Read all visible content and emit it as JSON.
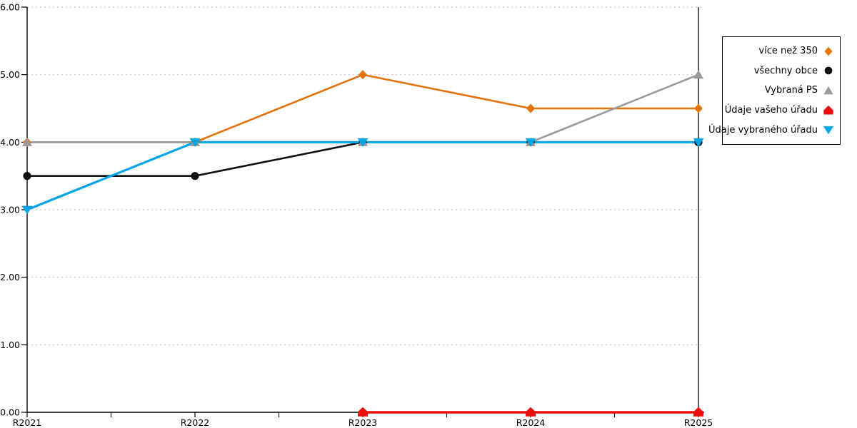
{
  "chart_data": {
    "type": "line",
    "title": "",
    "xlabel": "",
    "ylabel": "",
    "categories": [
      "R2021",
      "R2022",
      "R2023",
      "R2024",
      "R2025"
    ],
    "series": [
      {
        "name": "více než 350",
        "color": "#E2730D",
        "marker": "diamond",
        "values": [
          4,
          4,
          5,
          4.5,
          4.5
        ]
      },
      {
        "name": "všechny obce",
        "color": "#111111",
        "marker": "circle",
        "values": [
          3.5,
          3.5,
          4,
          4,
          4
        ]
      },
      {
        "name": "Vybraná PS",
        "color": "#9A9A9A",
        "marker": "triangle-up",
        "values": [
          4,
          4,
          4,
          4,
          5
        ]
      },
      {
        "name": "Údaje vašeho úřadu",
        "color": "#EE0D0D",
        "marker": "pentagon",
        "values": [
          null,
          null,
          0,
          0,
          0
        ]
      },
      {
        "name": "Údaje vybraného úřadu",
        "color": "#00A5E5",
        "marker": "triangle-down",
        "values": [
          3,
          4,
          4,
          4,
          4
        ]
      }
    ],
    "ylim": [
      0,
      6
    ],
    "ytick_labels": [
      "0.00",
      "1.00",
      "2.00",
      "3.00",
      "4.00",
      "5.00",
      "6.00"
    ],
    "grid": "horizontal dotted",
    "gridline_color": "#C9C9C9",
    "axis_color": "#000000",
    "vline_category": "R2025",
    "legend_position": "right"
  }
}
